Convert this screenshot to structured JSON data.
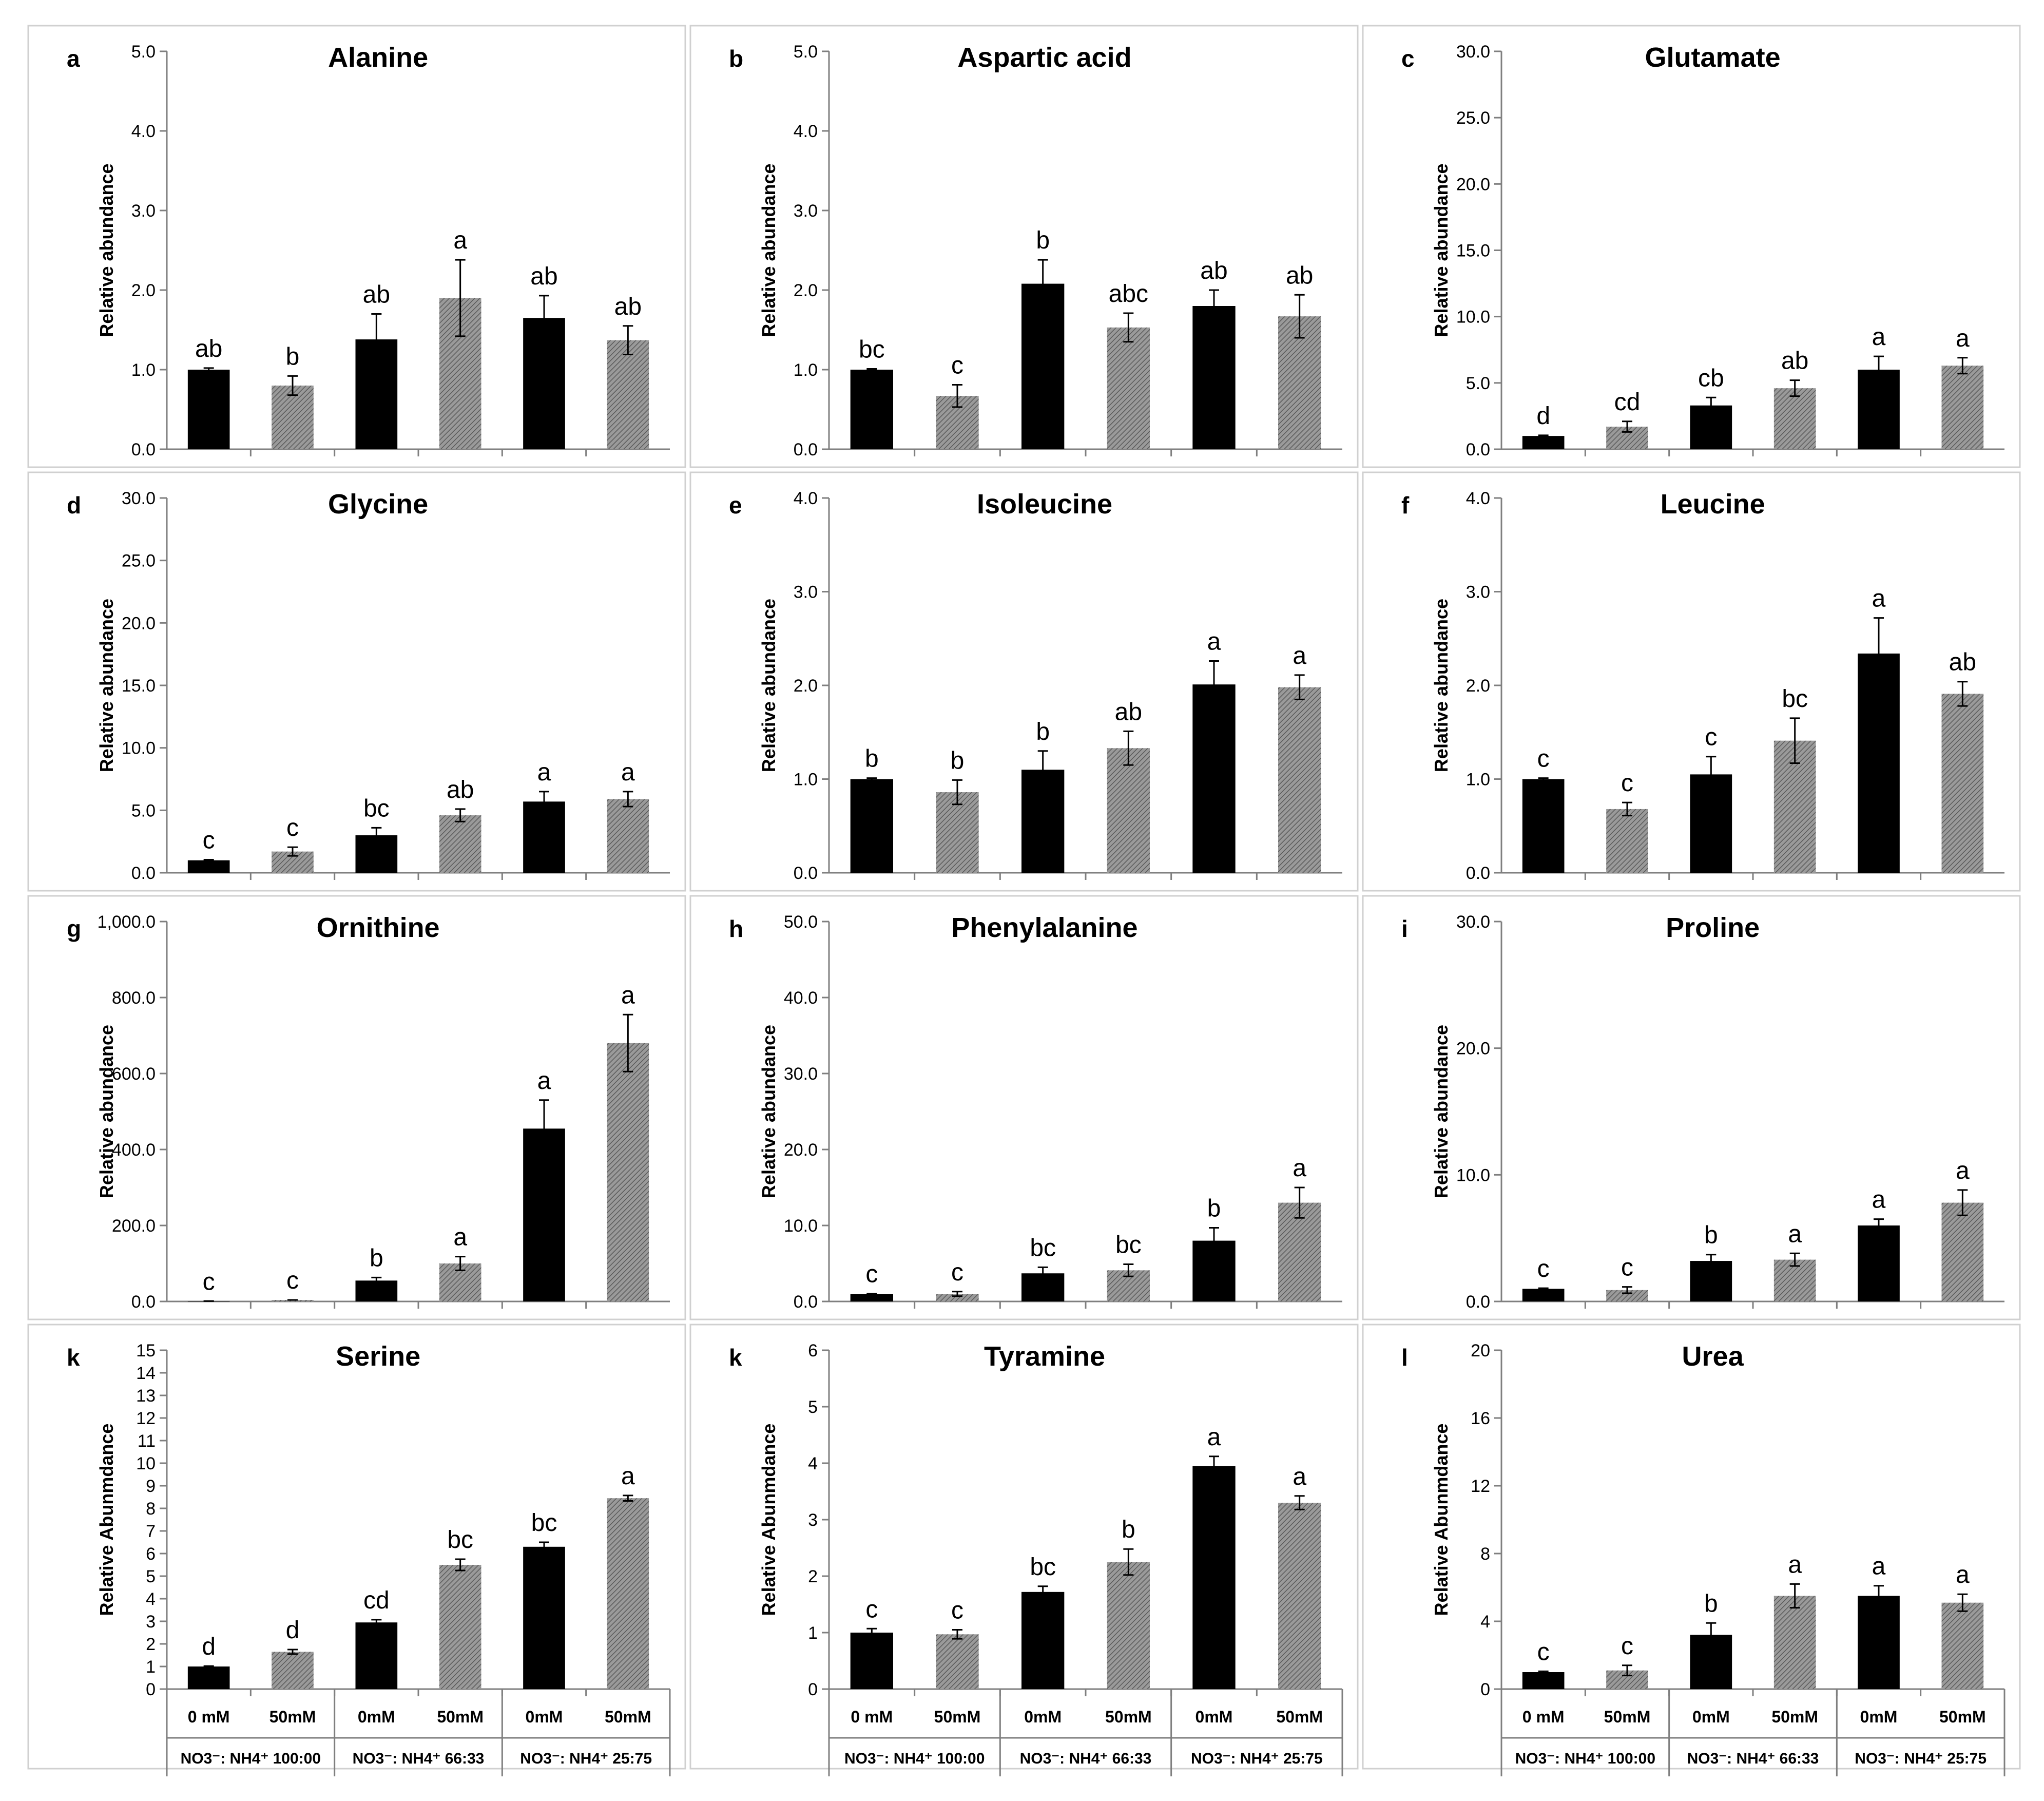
{
  "figure": {
    "colors": {
      "black_bar": "#000000",
      "gray_bar": "#8c8c8c",
      "axis": "#7f7f7f",
      "text": "#000000"
    },
    "x_axis_labels": {
      "concentrations": [
        "0 mM",
        "50mM",
        "0mM",
        "50mM",
        "0mM",
        "50mM"
      ],
      "groups": [
        "NO3⁻: NH4⁺ 100:00",
        "NO3⁻: NH4⁺ 66:33",
        "NO3⁻: NH4⁺ 25:75"
      ]
    }
  },
  "chart_data": [
    {
      "type": "bar",
      "panel_letter": "a",
      "title": "Alanine",
      "ylabel": "Relative abundance",
      "ylim": [
        0,
        5
      ],
      "ticks": [
        "0.0",
        "1.0",
        "2.0",
        "3.0",
        "4.0",
        "5.0"
      ],
      "values": [
        1.0,
        0.8,
        1.38,
        1.9,
        1.65,
        1.37
      ],
      "errors": [
        0.02,
        0.12,
        0.32,
        0.48,
        0.28,
        0.18
      ],
      "letters": [
        "ab",
        "b",
        "ab",
        "a",
        "ab",
        "ab"
      ]
    },
    {
      "type": "bar",
      "panel_letter": "b",
      "title": "Aspartic acid",
      "ylabel": "Relative abundance",
      "ylim": [
        0,
        5
      ],
      "ticks": [
        "0.0",
        "1.0",
        "2.0",
        "3.0",
        "4.0",
        "5.0"
      ],
      "values": [
        1.0,
        0.67,
        2.08,
        1.53,
        1.8,
        1.67
      ],
      "errors": [
        0.01,
        0.14,
        0.3,
        0.18,
        0.2,
        0.27
      ],
      "letters": [
        "bc",
        "c",
        "b",
        "abc",
        "ab",
        "ab"
      ]
    },
    {
      "type": "bar",
      "panel_letter": "c",
      "title": "Glutamate",
      "ylabel": "Relative abundance",
      "ylim": [
        0,
        30
      ],
      "ticks": [
        "0.0",
        "5.0",
        "10.0",
        "15.0",
        "20.0",
        "25.0",
        "30.0"
      ],
      "values": [
        1.0,
        1.7,
        3.3,
        4.6,
        6.0,
        6.3
      ],
      "errors": [
        0.05,
        0.4,
        0.6,
        0.6,
        1.0,
        0.6
      ],
      "letters": [
        "d",
        "cd",
        "cb",
        "ab",
        "a",
        "a"
      ]
    },
    {
      "type": "bar",
      "panel_letter": "d",
      "title": "Glycine",
      "ylabel": "Relative abundance",
      "ylim": [
        0,
        30
      ],
      "ticks": [
        "0.0",
        "5.0",
        "10.0",
        "15.0",
        "20.0",
        "25.0",
        "30.0"
      ],
      "values": [
        1.0,
        1.7,
        3.0,
        4.6,
        5.7,
        5.9
      ],
      "errors": [
        0.05,
        0.35,
        0.6,
        0.5,
        0.8,
        0.6
      ],
      "letters": [
        "c",
        "c",
        "bc",
        "ab",
        "a",
        "a"
      ]
    },
    {
      "type": "bar",
      "panel_letter": "e",
      "title": "Isoleucine",
      "ylabel": "Relative abundance",
      "ylim": [
        0,
        4
      ],
      "ticks": [
        "0.0",
        "1.0",
        "2.0",
        "3.0",
        "4.0"
      ],
      "values": [
        1.0,
        0.86,
        1.1,
        1.33,
        2.01,
        1.98
      ],
      "errors": [
        0.01,
        0.13,
        0.2,
        0.18,
        0.25,
        0.13
      ],
      "letters": [
        "b",
        "b",
        "b",
        "ab",
        "a",
        "a"
      ]
    },
    {
      "type": "bar",
      "panel_letter": "f",
      "title": "Leucine",
      "ylabel": "Relative abundance",
      "ylim": [
        0,
        4
      ],
      "ticks": [
        "0.0",
        "1.0",
        "2.0",
        "3.0",
        "4.0"
      ],
      "values": [
        1.0,
        0.68,
        1.05,
        1.41,
        2.34,
        1.91
      ],
      "errors": [
        0.01,
        0.07,
        0.19,
        0.24,
        0.38,
        0.13
      ],
      "letters": [
        "c",
        "c",
        "c",
        "bc",
        "a",
        "ab"
      ]
    },
    {
      "type": "bar",
      "panel_letter": "g",
      "title": "Ornithine",
      "ylabel": "Relative abundance",
      "ylim": [
        0,
        1000
      ],
      "ticks": [
        "0.0",
        "200.0",
        "400.0",
        "600.0",
        "800.0",
        "1,000.0"
      ],
      "values": [
        1,
        4,
        55,
        100,
        455,
        680
      ],
      "errors": [
        0,
        0,
        8,
        18,
        75,
        75
      ],
      "letters": [
        "c",
        "c",
        "b",
        "a",
        "a",
        "a"
      ]
    },
    {
      "type": "bar",
      "panel_letter": "h",
      "title": "Phenylalanine",
      "ylabel": "Relative abundance",
      "ylim": [
        0,
        50
      ],
      "ticks": [
        "0.0",
        "10.0",
        "20.0",
        "30.0",
        "40.0",
        "50.0"
      ],
      "values": [
        1.0,
        1.0,
        3.7,
        4.1,
        8.0,
        13.0
      ],
      "errors": [
        0.05,
        0.3,
        0.8,
        0.8,
        1.7,
        2.0
      ],
      "letters": [
        "c",
        "c",
        "bc",
        "bc",
        "b",
        "a"
      ]
    },
    {
      "type": "bar",
      "panel_letter": "i",
      "title": "Proline",
      "ylabel": "Relative abundance",
      "ylim": [
        0,
        30
      ],
      "ticks": [
        "0.0",
        "10.0",
        "20.0",
        "30.0"
      ],
      "values": [
        1.0,
        0.9,
        3.2,
        3.3,
        6.0,
        7.8
      ],
      "errors": [
        0.05,
        0.25,
        0.5,
        0.5,
        0.5,
        1.0
      ],
      "letters": [
        "c",
        "c",
        "b",
        "a",
        "a",
        "a"
      ]
    },
    {
      "type": "bar",
      "panel_letter": "k",
      "title": "Serine",
      "ylabel": "Relative Abunmdance",
      "ylim": [
        0,
        15
      ],
      "ticks": [
        "0",
        "1",
        "2",
        "3",
        "4",
        "5",
        "6",
        "7",
        "8",
        "9",
        "10",
        "11",
        "12",
        "13",
        "14",
        "15"
      ],
      "values": [
        1.0,
        1.65,
        2.95,
        5.5,
        6.3,
        8.45
      ],
      "errors": [
        0.02,
        0.1,
        0.12,
        0.25,
        0.2,
        0.12
      ],
      "letters": [
        "d",
        "d",
        "cd",
        "bc",
        "bc",
        "a"
      ]
    },
    {
      "type": "bar",
      "panel_letter": "k",
      "title": "Tyramine",
      "ylabel": "Relative Abunmdance",
      "ylim": [
        0,
        6
      ],
      "ticks": [
        "0",
        "1",
        "2",
        "3",
        "4",
        "5",
        "6"
      ],
      "values": [
        1.0,
        0.97,
        1.72,
        2.25,
        3.95,
        3.3
      ],
      "errors": [
        0.07,
        0.08,
        0.1,
        0.23,
        0.17,
        0.12
      ],
      "letters": [
        "c",
        "c",
        "bc",
        "b",
        "a",
        "a"
      ]
    },
    {
      "type": "bar",
      "panel_letter": "l",
      "title": "Urea",
      "ylabel": "Relative Abunmdance",
      "ylim": [
        0,
        20
      ],
      "ticks": [
        "0",
        "4",
        "8",
        "12",
        "16",
        "20"
      ],
      "values": [
        1.0,
        1.1,
        3.2,
        5.5,
        5.5,
        5.1
      ],
      "errors": [
        0.05,
        0.3,
        0.7,
        0.7,
        0.6,
        0.5
      ],
      "letters": [
        "c",
        "c",
        "b",
        "a",
        "a",
        "a"
      ]
    }
  ]
}
